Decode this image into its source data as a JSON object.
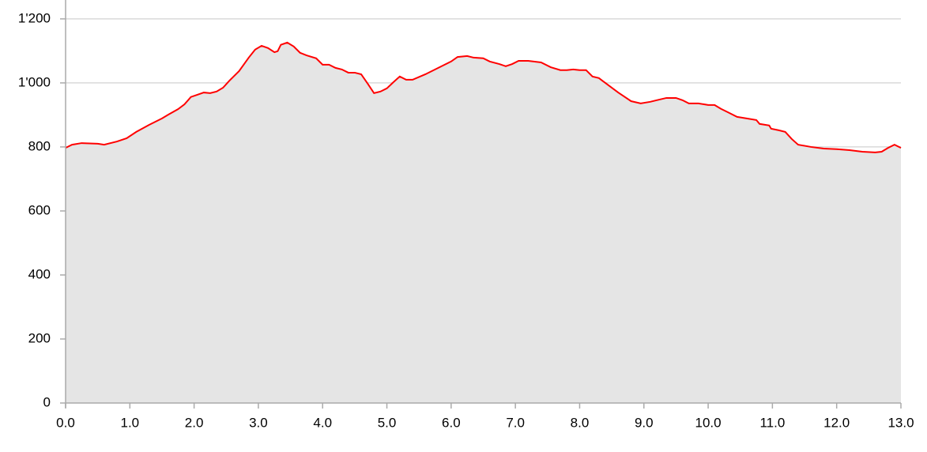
{
  "chart_data": {
    "type": "area",
    "x": [
      0.0,
      0.1,
      0.25,
      0.5,
      0.6,
      0.8,
      0.95,
      1.1,
      1.3,
      1.5,
      1.6,
      1.75,
      1.85,
      1.95,
      2.05,
      2.15,
      2.25,
      2.35,
      2.45,
      2.55,
      2.7,
      2.85,
      2.95,
      3.05,
      3.15,
      3.25,
      3.3,
      3.35,
      3.45,
      3.55,
      3.65,
      3.75,
      3.9,
      4.0,
      4.1,
      4.2,
      4.3,
      4.4,
      4.5,
      4.6,
      4.7,
      4.8,
      4.9,
      5.0,
      5.1,
      5.2,
      5.3,
      5.4,
      5.6,
      5.8,
      6.0,
      6.1,
      6.25,
      6.35,
      6.5,
      6.6,
      6.75,
      6.85,
      6.95,
      7.05,
      7.2,
      7.4,
      7.55,
      7.7,
      7.8,
      7.9,
      8.0,
      8.1,
      8.2,
      8.3,
      8.4,
      8.6,
      8.8,
      8.95,
      9.1,
      9.2,
      9.35,
      9.5,
      9.6,
      9.7,
      9.85,
      10.0,
      10.1,
      10.2,
      10.3,
      10.45,
      10.6,
      10.75,
      10.8,
      10.95,
      10.98,
      11.1,
      11.2,
      11.3,
      11.4,
      11.6,
      11.8,
      12.0,
      12.2,
      12.4,
      12.6,
      12.7,
      12.8,
      12.9,
      13.0
    ],
    "values": [
      797,
      807,
      812,
      810,
      807,
      817,
      827,
      847,
      869,
      889,
      901,
      918,
      933,
      956,
      963,
      970,
      968,
      973,
      985,
      1007,
      1037,
      1079,
      1104,
      1116,
      1109,
      1096,
      1099,
      1119,
      1126,
      1114,
      1094,
      1086,
      1077,
      1057,
      1057,
      1047,
      1042,
      1032,
      1032,
      1027,
      998,
      968,
      973,
      983,
      1002,
      1020,
      1010,
      1010,
      1027,
      1047,
      1067,
      1081,
      1084,
      1079,
      1077,
      1067,
      1059,
      1052,
      1059,
      1069,
      1069,
      1064,
      1049,
      1040,
      1040,
      1042,
      1040,
      1040,
      1020,
      1015,
      1000,
      970,
      943,
      936,
      941,
      946,
      953,
      953,
      946,
      936,
      936,
      931,
      931,
      919,
      909,
      894,
      889,
      884,
      872,
      867,
      857,
      852,
      847,
      825,
      807,
      800,
      795,
      793,
      790,
      785,
      783,
      785,
      797,
      807,
      797
    ],
    "color": "#ff0000",
    "area_color": "#e5e5e5",
    "grid": true,
    "xlim": [
      0,
      13
    ],
    "ylim": [
      0,
      1259
    ],
    "xticks": [
      {
        "value": 0,
        "label": "0.0"
      },
      {
        "value": 1,
        "label": "1.0"
      },
      {
        "value": 2,
        "label": "2.0"
      },
      {
        "value": 3,
        "label": "3.0"
      },
      {
        "value": 4,
        "label": "4.0"
      },
      {
        "value": 5,
        "label": "5.0"
      },
      {
        "value": 6,
        "label": "6.0"
      },
      {
        "value": 7,
        "label": "7.0"
      },
      {
        "value": 8,
        "label": "8.0"
      },
      {
        "value": 9,
        "label": "9.0"
      },
      {
        "value": 10,
        "label": "10.0"
      },
      {
        "value": 11,
        "label": "11.0"
      },
      {
        "value": 12,
        "label": "12.0"
      },
      {
        "value": 13,
        "label": "13.0"
      }
    ],
    "yticks": [
      0,
      200,
      400,
      600,
      800,
      {
        "value": 1000,
        "label": "1'000"
      },
      {
        "value": 1200,
        "label": "1'200"
      }
    ]
  }
}
